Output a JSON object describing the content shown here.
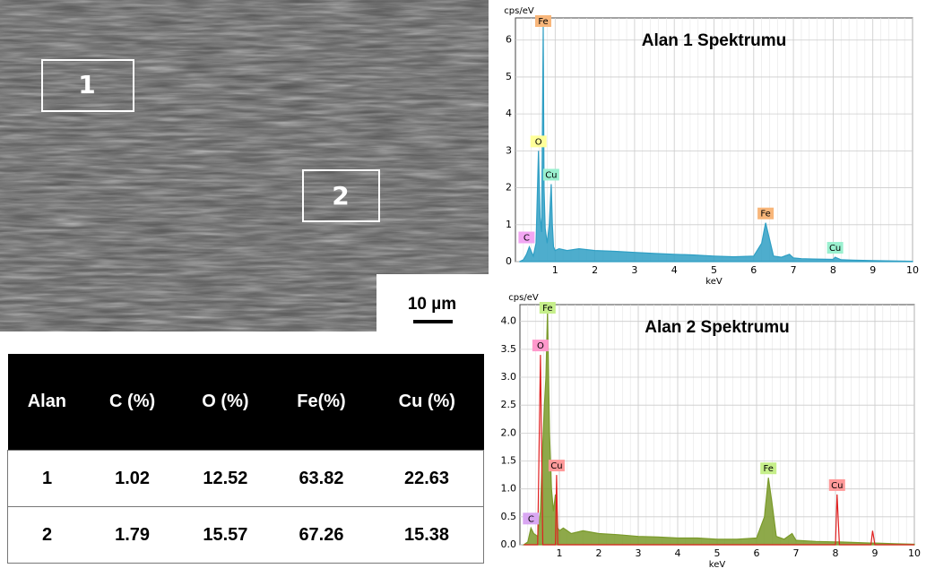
{
  "image": {
    "regions": [
      "1",
      "2"
    ],
    "scale_bar": "10 µm"
  },
  "table": {
    "header": [
      "Alan",
      "C (%)",
      "O (%)",
      "Fe(%)",
      "Cu (%)"
    ],
    "rows": [
      [
        "1",
        "1.02",
        "12.52",
        "63.82",
        "22.63"
      ],
      [
        "2",
        "1.79",
        "15.57",
        "67.26",
        "15.38"
      ]
    ]
  },
  "chart_data": [
    {
      "type": "area",
      "title": "Alan 1 Spektrumu",
      "y_label": "cps/eV",
      "x_label": "keV",
      "x": [
        0.1,
        0.2,
        0.28,
        0.35,
        0.45,
        0.52,
        0.58,
        0.62,
        0.66,
        0.7,
        0.72,
        0.75,
        0.8,
        0.85,
        0.9,
        0.93,
        0.96,
        1.0,
        1.1,
        1.3,
        1.6,
        2,
        2.5,
        3,
        3.5,
        4,
        4.5,
        5,
        5.5,
        6,
        6.2,
        6.3,
        6.4,
        6.5,
        6.7,
        6.9,
        7,
        7.2,
        7.5,
        8,
        8.05,
        8.2,
        8.5,
        9,
        9.5,
        10
      ],
      "series": [
        {
          "color": "#2f9fc4",
          "values": [
            0,
            0.05,
            0.2,
            0.4,
            0.15,
            0.5,
            3.0,
            1.2,
            0.8,
            6.4,
            2,
            0.9,
            0.5,
            1.0,
            2.1,
            1.0,
            0.4,
            0.3,
            0.35,
            0.3,
            0.35,
            0.3,
            0.28,
            0.25,
            0.22,
            0.2,
            0.18,
            0.15,
            0.13,
            0.15,
            0.5,
            1.05,
            0.6,
            0.15,
            0.12,
            0.2,
            0.1,
            0.08,
            0.07,
            0.06,
            0.12,
            0.05,
            0.04,
            0.03,
            0.02,
            0.01
          ]
        }
      ],
      "peaks": [
        {
          "label": "C",
          "kev": 0.28,
          "color": "#f2a6f2"
        },
        {
          "label": "O",
          "kev": 0.58,
          "color": "#ffff99"
        },
        {
          "label": "Fe",
          "kev": 0.7,
          "color": "#f8b67a"
        },
        {
          "label": "Cu",
          "kev": 0.9,
          "color": "#9af0cf"
        },
        {
          "label": "Fe",
          "kev": 6.3,
          "color": "#f8b67a"
        },
        {
          "label": "Cu",
          "kev": 8.05,
          "color": "#9af0cf"
        }
      ],
      "xlim": [
        0,
        10
      ],
      "ylim": [
        0,
        6.6
      ],
      "xticks": [
        1,
        2,
        3,
        4,
        5,
        6,
        7,
        8,
        9,
        10
      ],
      "yticks": [
        0,
        1,
        2,
        3,
        4,
        5,
        6
      ],
      "grid": true
    },
    {
      "type": "area",
      "title": "Alan 2 Spektrumu",
      "y_label": "cps/eV",
      "x_label": "keV",
      "x": [
        0.1,
        0.2,
        0.28,
        0.35,
        0.45,
        0.52,
        0.58,
        0.62,
        0.66,
        0.7,
        0.75,
        0.8,
        0.85,
        0.9,
        0.93,
        0.96,
        1.0,
        1.1,
        1.3,
        1.6,
        2,
        2.5,
        3,
        3.5,
        4,
        4.5,
        5,
        5.5,
        6,
        6.2,
        6.3,
        6.4,
        6.5,
        6.7,
        6.9,
        7,
        7.5,
        8,
        8.04,
        8.1,
        8.5,
        8.9,
        8.94,
        9,
        9.5,
        10
      ],
      "series": [
        {
          "color": "#7a9a2a",
          "values": [
            0,
            0.05,
            0.3,
            0.2,
            0.15,
            0.6,
            1.8,
            2.5,
            3.0,
            4.2,
            2.0,
            1.0,
            0.6,
            0.9,
            0.8,
            0.3,
            0.25,
            0.3,
            0.2,
            0.25,
            0.2,
            0.18,
            0.15,
            0.14,
            0.12,
            0.12,
            0.1,
            0.1,
            0.12,
            0.5,
            1.2,
            0.7,
            0.15,
            0.1,
            0.2,
            0.08,
            0.06,
            0.05,
            0.05,
            0.05,
            0.04,
            0.03,
            0.03,
            0.03,
            0.02,
            0.01
          ]
        },
        {
          "color": "#e02020",
          "values": [
            0,
            0,
            0,
            0,
            0,
            3.4,
            0,
            0,
            0,
            0,
            0,
            0,
            0,
            0,
            1.25,
            0,
            0,
            0,
            0,
            0,
            0,
            0,
            0,
            0,
            0,
            0,
            0,
            0,
            0,
            0,
            0,
            0,
            0,
            0,
            0,
            0,
            0,
            0,
            0.9,
            0,
            0,
            0,
            0.25,
            0,
            0,
            0
          ]
        }
      ],
      "peaks": [
        {
          "label": "C",
          "kev": 0.28,
          "color": "#d9a6f2"
        },
        {
          "label": "O",
          "kev": 0.52,
          "color": "#ff99cc"
        },
        {
          "label": "Fe",
          "kev": 0.7,
          "color": "#c6ef8a"
        },
        {
          "label": "Cu",
          "kev": 0.93,
          "color": "#ff9a9a"
        },
        {
          "label": "Fe",
          "kev": 6.3,
          "color": "#c6ef8a"
        },
        {
          "label": "Cu",
          "kev": 8.04,
          "color": "#ff9a9a"
        }
      ],
      "xlim": [
        0,
        10
      ],
      "ylim": [
        0,
        4.3
      ],
      "xticks": [
        1,
        2,
        3,
        4,
        5,
        6,
        7,
        8,
        9,
        10
      ],
      "yticks": [
        {
          "value": 0,
          "label": "0.0"
        },
        {
          "value": 0.5,
          "label": "0.5"
        },
        {
          "value": 1,
          "label": "1.0"
        },
        {
          "value": 1.5,
          "label": "1.5"
        },
        {
          "value": 2,
          "label": "2.0"
        },
        {
          "value": 2.5,
          "label": "2.5"
        },
        {
          "value": 3,
          "label": "3.0"
        },
        {
          "value": 3.5,
          "label": "3.5"
        },
        {
          "value": 4,
          "label": "4.0"
        }
      ],
      "grid": true
    }
  ]
}
